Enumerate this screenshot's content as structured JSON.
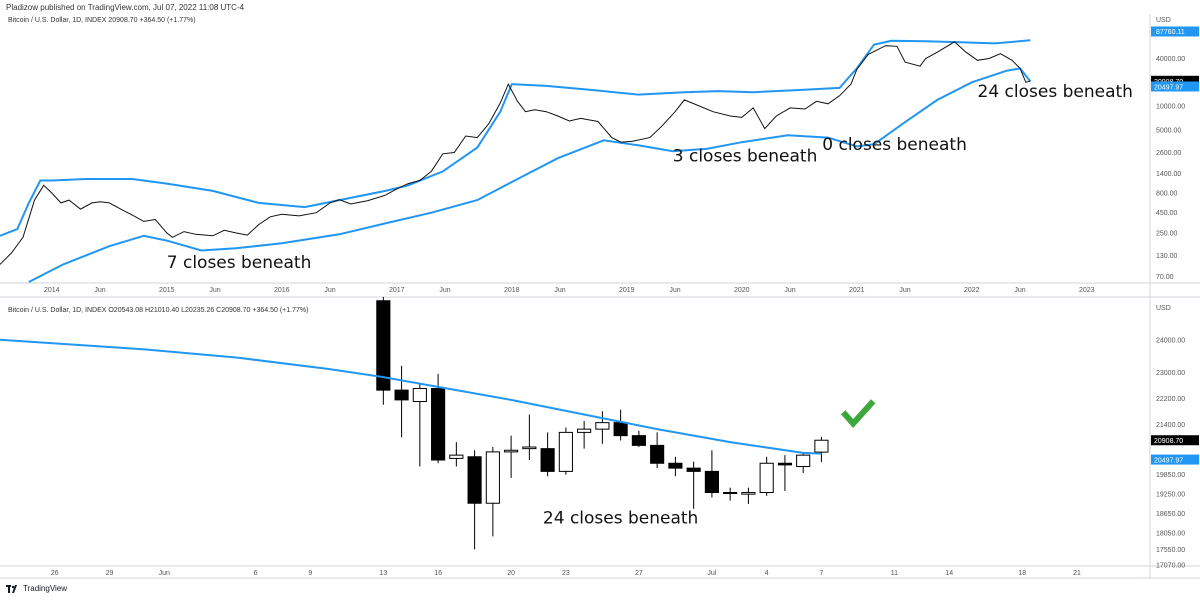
{
  "header": {
    "published_line": "Pladizow published on TradingView.com, Jul 07, 2022 11:08 UTC-4"
  },
  "top_pane": {
    "legend": "Bitcoin / U.S. Dollar, 1D, INDEX  20908.70  +364.50 (+1.77%)"
  },
  "bottom_pane": {
    "legend": "Bitcoin / U.S. Dollar, 1D, INDEX  O20543.08  H21010.40  L20235.26  C20908.70  +364.50 (+1.77%)"
  },
  "footer": {
    "brand": "TradingView"
  },
  "colors": {
    "price_line": "#111111",
    "bands": "#2196F3",
    "check": "#3CA73A",
    "price_tag": "#000000",
    "ma_tag": "#2196F3"
  },
  "chart_data": [
    {
      "type": "line",
      "title": "Bitcoin / U.S. Dollar, 1D, INDEX",
      "yscale": "log",
      "ylabel": "USD",
      "ylim": [
        60,
        100000
      ],
      "y_ticks": [
        "USD",
        "87760.11",
        "40000.00",
        "20000.00",
        "10000.00",
        "5000.00",
        "2600.00",
        "1400.00",
        "800.00",
        "450.00",
        "250.00",
        "130.00",
        "70.00"
      ],
      "y_tick_values": [
        87760.11,
        40000,
        20000,
        10000,
        5000,
        2600,
        1400,
        800,
        450,
        250,
        130,
        70
      ],
      "x_ticks": [
        "2014",
        "Jun",
        "2015",
        "Jun",
        "2016",
        "Jun",
        "2017",
        "Jun",
        "2018",
        "Jun",
        "2019",
        "Jun",
        "2020",
        "Jun",
        "2021",
        "Jun",
        "2022",
        "Jun",
        "2023"
      ],
      "x_tick_values": [
        2014.0,
        2014.42,
        2015.0,
        2015.42,
        2016.0,
        2016.42,
        2017.0,
        2017.42,
        2018.0,
        2018.42,
        2019.0,
        2019.42,
        2020.0,
        2020.42,
        2021.0,
        2021.42,
        2022.0,
        2022.42,
        2023.0
      ],
      "xlim": [
        2013.55,
        2023.55
      ],
      "price_tags": [
        "20908.70",
        "20497.97"
      ],
      "price_tag_values": [
        20908.7,
        20497.97
      ],
      "series": [
        {
          "name": "",
          "values": [
            [
              2013.55,
              100
            ],
            [
              2013.65,
              140
            ],
            [
              2013.75,
              220
            ],
            [
              2013.85,
              650
            ],
            [
              2013.93,
              1000
            ],
            [
              2014.0,
              800
            ],
            [
              2014.08,
              600
            ],
            [
              2014.15,
              650
            ],
            [
              2014.25,
              500
            ],
            [
              2014.35,
              600
            ],
            [
              2014.42,
              620
            ],
            [
              2014.5,
              600
            ],
            [
              2014.6,
              500
            ],
            [
              2014.7,
              420
            ],
            [
              2014.8,
              350
            ],
            [
              2014.9,
              370
            ],
            [
              2015.0,
              250
            ],
            [
              2015.05,
              220
            ],
            [
              2015.15,
              260
            ],
            [
              2015.25,
              240
            ],
            [
              2015.4,
              230
            ],
            [
              2015.5,
              270
            ],
            [
              2015.6,
              250
            ],
            [
              2015.7,
              235
            ],
            [
              2015.8,
              320
            ],
            [
              2015.9,
              400
            ],
            [
              2016.0,
              430
            ],
            [
              2016.15,
              410
            ],
            [
              2016.3,
              450
            ],
            [
              2016.42,
              600
            ],
            [
              2016.5,
              660
            ],
            [
              2016.6,
              580
            ],
            [
              2016.75,
              640
            ],
            [
              2016.9,
              750
            ],
            [
              2017.0,
              900
            ],
            [
              2017.1,
              1050
            ],
            [
              2017.2,
              1150
            ],
            [
              2017.3,
              1500
            ],
            [
              2017.4,
              2500
            ],
            [
              2017.5,
              2600
            ],
            [
              2017.6,
              4200
            ],
            [
              2017.7,
              4000
            ],
            [
              2017.8,
              6000
            ],
            [
              2017.9,
              11000
            ],
            [
              2017.97,
              19000
            ],
            [
              2018.05,
              11500
            ],
            [
              2018.12,
              8500
            ],
            [
              2018.2,
              9000
            ],
            [
              2018.3,
              8500
            ],
            [
              2018.4,
              7500
            ],
            [
              2018.5,
              6500
            ],
            [
              2018.6,
              7000
            ],
            [
              2018.75,
              6400
            ],
            [
              2018.87,
              4000
            ],
            [
              2018.95,
              3500
            ],
            [
              2019.05,
              3600
            ],
            [
              2019.2,
              4000
            ],
            [
              2019.3,
              5500
            ],
            [
              2019.42,
              8500
            ],
            [
              2019.5,
              12000
            ],
            [
              2019.6,
              10500
            ],
            [
              2019.75,
              8500
            ],
            [
              2019.9,
              7500
            ],
            [
              2020.0,
              7200
            ],
            [
              2020.1,
              9500
            ],
            [
              2020.2,
              5200
            ],
            [
              2020.3,
              7500
            ],
            [
              2020.42,
              9500
            ],
            [
              2020.55,
              9200
            ],
            [
              2020.65,
              11500
            ],
            [
              2020.75,
              10700
            ],
            [
              2020.85,
              13500
            ],
            [
              2020.95,
              19000
            ],
            [
              2021.0,
              29000
            ],
            [
              2021.1,
              45000
            ],
            [
              2021.25,
              58000
            ],
            [
              2021.35,
              57000
            ],
            [
              2021.42,
              36000
            ],
            [
              2021.55,
              32000
            ],
            [
              2021.6,
              40000
            ],
            [
              2021.7,
              48000
            ],
            [
              2021.85,
              65000
            ],
            [
              2021.95,
              48000
            ],
            [
              2022.05,
              38000
            ],
            [
              2022.15,
              40000
            ],
            [
              2022.25,
              46000
            ],
            [
              2022.35,
              38000
            ],
            [
              2022.42,
              30000
            ],
            [
              2022.47,
              20000
            ],
            [
              2022.51,
              20900
            ]
          ]
        },
        {
          "name": "",
          "values": [
            [
              2013.55,
              230
            ],
            [
              2013.7,
              280
            ],
            [
              2013.8,
              600
            ],
            [
              2013.9,
              1150
            ],
            [
              2014.0,
              1150
            ],
            [
              2014.3,
              1200
            ],
            [
              2014.7,
              1200
            ],
            [
              2015.0,
              1050
            ],
            [
              2015.4,
              850
            ],
            [
              2015.8,
              600
            ],
            [
              2016.2,
              530
            ],
            [
              2016.5,
              650
            ],
            [
              2016.9,
              850
            ],
            [
              2017.1,
              1000
            ],
            [
              2017.4,
              1500
            ],
            [
              2017.7,
              3000
            ],
            [
              2017.9,
              8500
            ],
            [
              2018.0,
              19000
            ],
            [
              2018.3,
              18000
            ],
            [
              2018.7,
              16000
            ],
            [
              2019.1,
              14000
            ],
            [
              2019.5,
              15000
            ],
            [
              2019.8,
              15500
            ],
            [
              2020.1,
              15000
            ],
            [
              2020.5,
              16000
            ],
            [
              2020.85,
              17000
            ],
            [
              2021.0,
              30000
            ],
            [
              2021.15,
              60000
            ],
            [
              2021.3,
              67000
            ],
            [
              2021.6,
              66000
            ],
            [
              2021.9,
              64000
            ],
            [
              2022.2,
              62000
            ],
            [
              2022.51,
              68000
            ]
          ]
        },
        {
          "name": "",
          "values": [
            [
              2013.8,
              60
            ],
            [
              2014.1,
              100
            ],
            [
              2014.5,
              170
            ],
            [
              2014.8,
              230
            ],
            [
              2015.0,
              200
            ],
            [
              2015.3,
              150
            ],
            [
              2015.6,
              160
            ],
            [
              2016.0,
              185
            ],
            [
              2016.5,
              240
            ],
            [
              2016.9,
              330
            ],
            [
              2017.3,
              450
            ],
            [
              2017.7,
              650
            ],
            [
              2018.0,
              1100
            ],
            [
              2018.4,
              2200
            ],
            [
              2018.8,
              3700
            ],
            [
              2019.1,
              3200
            ],
            [
              2019.4,
              2700
            ],
            [
              2019.7,
              2900
            ],
            [
              2020.0,
              3500
            ],
            [
              2020.4,
              4300
            ],
            [
              2020.75,
              4000
            ],
            [
              2021.0,
              3100
            ],
            [
              2021.15,
              3300
            ],
            [
              2021.4,
              6000
            ],
            [
              2021.7,
              12000
            ],
            [
              2022.0,
              20000
            ],
            [
              2022.3,
              28000
            ],
            [
              2022.42,
              30000
            ],
            [
              2022.51,
              20500
            ]
          ]
        }
      ],
      "annotations": [
        {
          "text": "7 closes beneath",
          "x": 2015.0,
          "y": 90
        },
        {
          "text": "3 closes beneath",
          "x": 2019.4,
          "y": 2000
        },
        {
          "text": "0 closes beneath",
          "x": 2020.7,
          "y": 2800
        },
        {
          "text": "24 closes beneath",
          "x": 2022.05,
          "y": 13000
        }
      ]
    },
    {
      "type": "candlestick",
      "title": "Bitcoin / U.S. Dollar, 1D, INDEX",
      "ylabel": "USD",
      "ylim": [
        17070,
        24700
      ],
      "y_ticks": [
        "USD",
        "24000.00",
        "23000.00",
        "22200.00",
        "21400.00",
        "20908.70",
        "20497.97",
        "19850.00",
        "19250.00",
        "18650.00",
        "18050.00",
        "17550.00",
        "17070.00"
      ],
      "y_tick_values": [
        24000,
        23000,
        22200,
        21400,
        20908.7,
        20497.97,
        19850,
        19250,
        18650,
        18050,
        17550,
        17070
      ],
      "x_ticks": [
        "26",
        "29",
        "Jun",
        "6",
        "9",
        "13",
        "16",
        "20",
        "23",
        "27",
        "Jul",
        "4",
        "7",
        "11",
        "14",
        "18",
        "21"
      ],
      "x_tick_values": [
        -5,
        -2,
        1,
        6,
        9,
        13,
        16,
        20,
        23,
        27,
        31,
        34,
        37,
        41,
        44,
        48,
        51
      ],
      "xlim": [
        -8,
        55
      ],
      "price_tags": [
        "20908.70",
        "20497.97"
      ],
      "price_tag_values": [
        20908.7,
        20497.97
      ],
      "candles": [
        {
          "x": 13,
          "o": 25200,
          "h": 26400,
          "l": 22000,
          "c": 22450
        },
        {
          "x": 14,
          "o": 22450,
          "h": 23200,
          "l": 21000,
          "c": 22150
        },
        {
          "x": 15,
          "o": 22100,
          "h": 22650,
          "l": 20100,
          "c": 22500
        },
        {
          "x": 16,
          "o": 22500,
          "h": 22950,
          "l": 20200,
          "c": 20300
        },
        {
          "x": 17,
          "o": 20350,
          "h": 20850,
          "l": 20100,
          "c": 20450
        },
        {
          "x": 18,
          "o": 20400,
          "h": 20600,
          "l": 17550,
          "c": 18970
        },
        {
          "x": 19,
          "o": 18970,
          "h": 20700,
          "l": 17950,
          "c": 20550
        },
        {
          "x": 20,
          "o": 20550,
          "h": 21050,
          "l": 19750,
          "c": 20600
        },
        {
          "x": 21,
          "o": 20650,
          "h": 21700,
          "l": 20300,
          "c": 20700
        },
        {
          "x": 22,
          "o": 20650,
          "h": 21150,
          "l": 19800,
          "c": 19950
        },
        {
          "x": 23,
          "o": 19950,
          "h": 21300,
          "l": 19850,
          "c": 21150
        },
        {
          "x": 24,
          "o": 21150,
          "h": 21500,
          "l": 20650,
          "c": 21250
        },
        {
          "x": 25,
          "o": 21250,
          "h": 21800,
          "l": 20800,
          "c": 21450
        },
        {
          "x": 26,
          "o": 21450,
          "h": 21850,
          "l": 20900,
          "c": 21050
        },
        {
          "x": 27,
          "o": 21050,
          "h": 21200,
          "l": 20700,
          "c": 20750
        },
        {
          "x": 28,
          "o": 20750,
          "h": 21150,
          "l": 20050,
          "c": 20200
        },
        {
          "x": 29,
          "o": 20200,
          "h": 20400,
          "l": 19800,
          "c": 20050
        },
        {
          "x": 30,
          "o": 20050,
          "h": 20250,
          "l": 18800,
          "c": 19950
        },
        {
          "x": 31,
          "o": 19950,
          "h": 20600,
          "l": 19150,
          "c": 19300
        },
        {
          "x": 32,
          "o": 19300,
          "h": 19450,
          "l": 19050,
          "c": 19280
        },
        {
          "x": 33,
          "o": 19250,
          "h": 19450,
          "l": 18950,
          "c": 19300
        },
        {
          "x": 34,
          "o": 19300,
          "h": 20400,
          "l": 19200,
          "c": 20200
        },
        {
          "x": 35,
          "o": 20200,
          "h": 20450,
          "l": 19350,
          "c": 20150
        },
        {
          "x": 36,
          "o": 20100,
          "h": 20500,
          "l": 19900,
          "c": 20450
        },
        {
          "x": 37,
          "o": 20543.08,
          "h": 21010.4,
          "l": 20235.26,
          "c": 20908.7
        }
      ],
      "series": [
        {
          "name": "",
          "values": [
            [
              -8,
              24000
            ],
            [
              0,
              23700
            ],
            [
              5,
              23450
            ],
            [
              10,
              23100
            ],
            [
              13,
              22850
            ],
            [
              16,
              22550
            ],
            [
              20,
              22150
            ],
            [
              24,
              21700
            ],
            [
              28,
              21250
            ],
            [
              32,
              20850
            ],
            [
              36,
              20520
            ],
            [
              37,
              20497.97
            ]
          ]
        }
      ],
      "annotations": [
        {
          "text": "24 closes beneath",
          "x": 26,
          "y": 18350
        }
      ]
    }
  ]
}
